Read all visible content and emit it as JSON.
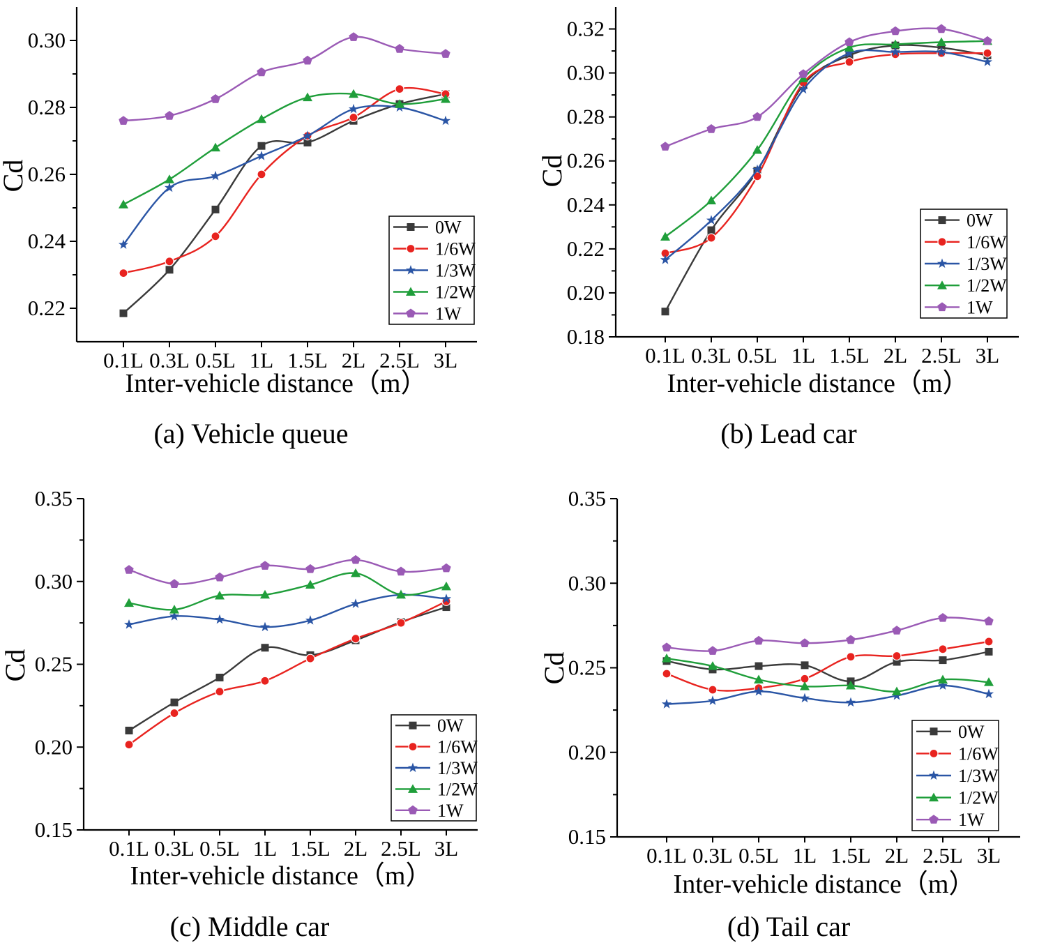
{
  "figure": {
    "series_colors": {
      "0W": "#3a3a3a",
      "1/6W": "#e8231f",
      "1/3W": "#2a55a5",
      "1/2W": "#1f9e3a",
      "1W": "#9a5ab5"
    },
    "series_markers": {
      "0W": "square",
      "1/6W": "circle",
      "1/3W": "star",
      "1/2W": "triangle",
      "1W": "pentagon"
    }
  },
  "chart_data": [
    {
      "type": "line",
      "caption": "(a) Vehicle queue",
      "xlabel": "Inter-vehicle distance（m）",
      "ylabel": "Cd",
      "categories": [
        "0.1L",
        "0.3L",
        "0.5L",
        "1L",
        "1.5L",
        "2L",
        "2.5L",
        "3L"
      ],
      "ylim": [
        0.21,
        0.31
      ],
      "yticks": [
        "0.22",
        "0.24",
        "0.26",
        "0.28",
        "0.30"
      ],
      "legend_position": "bottom-right",
      "series": [
        {
          "name": "0W",
          "values": [
            0.2185,
            0.2315,
            0.2495,
            0.2685,
            0.2695,
            0.276,
            0.281,
            0.284
          ]
        },
        {
          "name": "1/6W",
          "values": [
            0.2305,
            0.234,
            0.2415,
            0.26,
            0.2715,
            0.277,
            0.2855,
            0.284
          ]
        },
        {
          "name": "1/3W",
          "values": [
            0.239,
            0.256,
            0.2595,
            0.2655,
            0.2715,
            0.2795,
            0.28,
            0.276
          ]
        },
        {
          "name": "1/2W",
          "values": [
            0.251,
            0.2585,
            0.268,
            0.2765,
            0.283,
            0.284,
            0.281,
            0.2825
          ]
        },
        {
          "name": "1W",
          "values": [
            0.276,
            0.2775,
            0.2825,
            0.2905,
            0.294,
            0.301,
            0.2975,
            0.296
          ]
        }
      ]
    },
    {
      "type": "line",
      "caption": "(b) Lead car",
      "xlabel": "Inter-vehicle distance（m）",
      "ylabel": "Cd",
      "categories": [
        "0.1L",
        "0.3L",
        "0.5L",
        "1L",
        "1.5L",
        "2L",
        "2.5L",
        "3L"
      ],
      "ylim": [
        0.18,
        0.33
      ],
      "yticks": [
        "0.18",
        "0.20",
        "0.22",
        "0.24",
        "0.26",
        "0.28",
        "0.30",
        "0.32"
      ],
      "legend_position": "bottom-right",
      "series": [
        {
          "name": "0W",
          "values": [
            0.1915,
            0.2285,
            0.2555,
            0.2945,
            0.308,
            0.3125,
            0.3115,
            0.308
          ]
        },
        {
          "name": "1/6W",
          "values": [
            0.218,
            0.225,
            0.253,
            0.2955,
            0.305,
            0.3085,
            0.309,
            0.309
          ]
        },
        {
          "name": "1/3W",
          "values": [
            0.215,
            0.233,
            0.256,
            0.2925,
            0.309,
            0.3095,
            0.3095,
            0.305
          ]
        },
        {
          "name": "1/2W",
          "values": [
            0.2255,
            0.242,
            0.265,
            0.2975,
            0.3115,
            0.313,
            0.314,
            0.3145
          ]
        },
        {
          "name": "1W",
          "values": [
            0.2665,
            0.2745,
            0.28,
            0.2995,
            0.314,
            0.319,
            0.32,
            0.3145
          ]
        }
      ]
    },
    {
      "type": "line",
      "caption": "(c) Middle car",
      "xlabel": "Inter-vehicle distance（m）",
      "ylabel": "Cd",
      "categories": [
        "0.1L",
        "0.3L",
        "0.5L",
        "1L",
        "1.5L",
        "2L",
        "2.5L",
        "3L"
      ],
      "ylim": [
        0.15,
        0.35
      ],
      "yticks": [
        "0.15",
        "0.20",
        "0.25",
        "0.30",
        "0.35"
      ],
      "legend_position": "bottom-right",
      "series": [
        {
          "name": "0W",
          "values": [
            0.21,
            0.227,
            0.242,
            0.26,
            0.2555,
            0.2645,
            0.2755,
            0.2845
          ]
        },
        {
          "name": "1/6W",
          "values": [
            0.2015,
            0.2205,
            0.2335,
            0.24,
            0.2535,
            0.2655,
            0.275,
            0.288
          ]
        },
        {
          "name": "1/3W",
          "values": [
            0.274,
            0.279,
            0.277,
            0.2725,
            0.2765,
            0.2865,
            0.292,
            0.2895
          ]
        },
        {
          "name": "1/2W",
          "values": [
            0.287,
            0.283,
            0.2915,
            0.292,
            0.298,
            0.305,
            0.292,
            0.297
          ]
        },
        {
          "name": "1W",
          "values": [
            0.307,
            0.2985,
            0.3025,
            0.3095,
            0.3075,
            0.313,
            0.306,
            0.308
          ]
        }
      ]
    },
    {
      "type": "line",
      "caption": "(d) Tail car",
      "xlabel": "Inter-vehicle distance（m）",
      "ylabel": "Cd",
      "categories": [
        "0.1L",
        "0.3L",
        "0.5L",
        "1L",
        "1.5L",
        "2L",
        "2.5L",
        "3L"
      ],
      "ylim": [
        0.15,
        0.35
      ],
      "yticks": [
        "0.15",
        "0.20",
        "0.25",
        "0.30",
        "0.35"
      ],
      "legend_position": "bottom-right",
      "series": [
        {
          "name": "0W",
          "values": [
            0.254,
            0.249,
            0.251,
            0.2515,
            0.242,
            0.2535,
            0.2545,
            0.2595
          ]
        },
        {
          "name": "1/6W",
          "values": [
            0.2465,
            0.237,
            0.238,
            0.2435,
            0.2565,
            0.257,
            0.261,
            0.2655
          ]
        },
        {
          "name": "1/3W",
          "values": [
            0.2285,
            0.2305,
            0.236,
            0.232,
            0.2295,
            0.2335,
            0.2395,
            0.2345
          ]
        },
        {
          "name": "1/2W",
          "values": [
            0.2555,
            0.251,
            0.243,
            0.239,
            0.2395,
            0.236,
            0.243,
            0.2415
          ]
        },
        {
          "name": "1W",
          "values": [
            0.262,
            0.26,
            0.266,
            0.2645,
            0.2665,
            0.272,
            0.2795,
            0.2775
          ]
        }
      ]
    }
  ]
}
